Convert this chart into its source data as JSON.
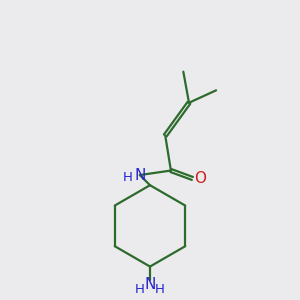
{
  "background_color": "#ebebed",
  "bond_color": "#2d6b2d",
  "n_color": "#2525cc",
  "o_color": "#cc2020",
  "line_width": 1.6,
  "figsize": [
    3.0,
    3.0
  ],
  "dpi": 100,
  "xlim": [
    -1.6,
    1.6
  ],
  "ylim": [
    -3.0,
    2.2
  ]
}
